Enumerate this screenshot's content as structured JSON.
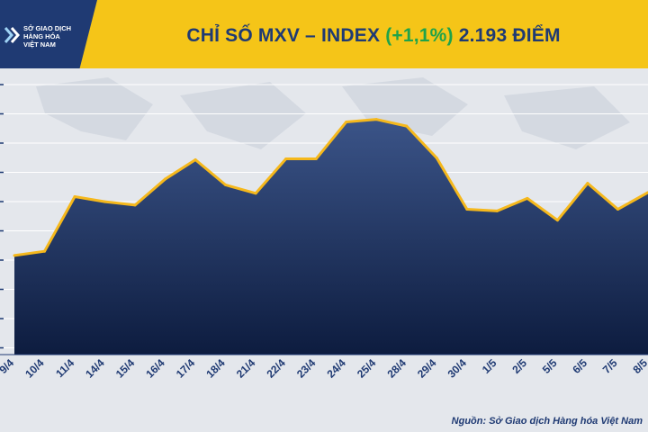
{
  "header": {
    "logo_lines": [
      "SỞ GIAO DỊCH",
      "HÀNG HÓA",
      "VIỆT NAM"
    ],
    "title_prefix": "CHỈ SỐ MXV – INDEX",
    "title_change": "(+1,1%)",
    "title_suffix": "2.193 ĐIỂM"
  },
  "colors": {
    "header_bg": "#f5c518",
    "brand_navy": "#1f3a73",
    "change_green": "#1fa34a",
    "line": "#f5b81c",
    "area_top": "#3b5488",
    "area_bottom": "#0d1c3f"
  },
  "chart_data": {
    "type": "area",
    "title": "CHỈ SỐ MXV – INDEX (+1,1%) 2.193 ĐIỂM",
    "categories": [
      "9/4",
      "10/4",
      "11/4",
      "14/4",
      "15/4",
      "16/4",
      "17/4",
      "18/4",
      "21/4",
      "22/4",
      "23/4",
      "24/4",
      "25/4",
      "28/4",
      "29/4",
      "30/4",
      "1/5",
      "2/5",
      "5/5",
      "6/5",
      "7/5",
      "8/5"
    ],
    "values": [
      2118,
      2123,
      2188,
      2182,
      2178,
      2209,
      2232,
      2202,
      2192,
      2233,
      2233,
      2277,
      2280,
      2272,
      2234,
      2173,
      2171,
      2186,
      2160,
      2204,
      2173,
      2193
    ],
    "ylim": [
      2000,
      2330
    ],
    "y_axis_labels_visible": false,
    "grid": true,
    "legend": "none",
    "source": "Nguồn: Sở Giao dịch Hàng hóa Việt Nam"
  }
}
